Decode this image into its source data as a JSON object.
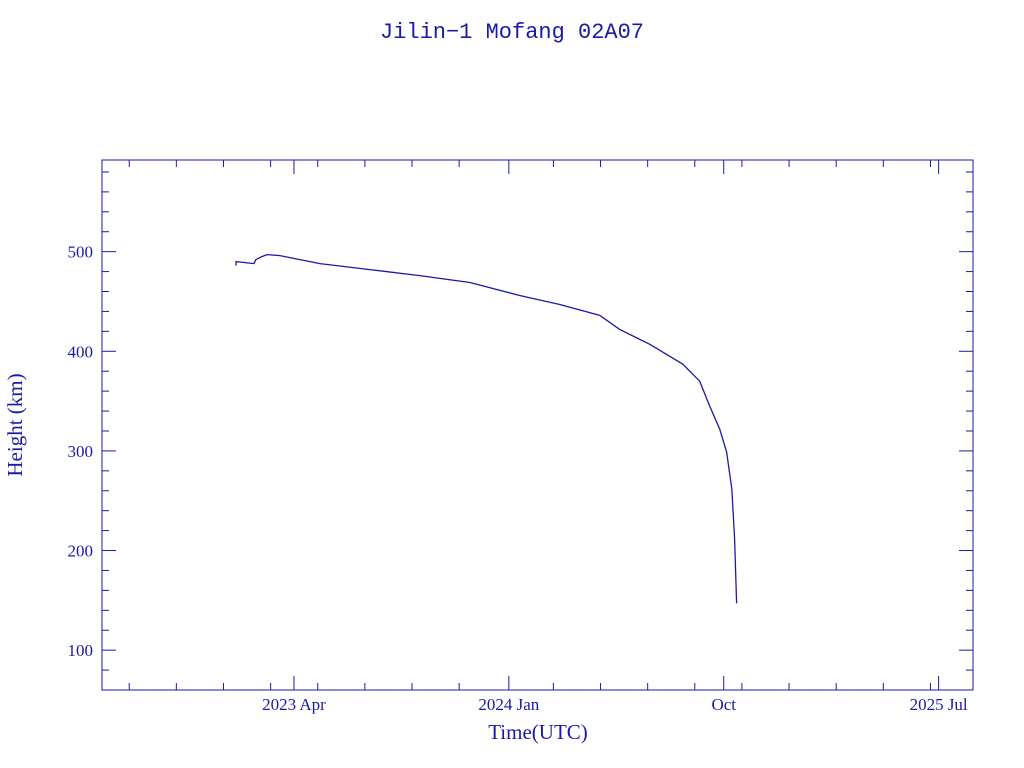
{
  "chart_data": {
    "type": "line",
    "title": "Jilin−1 Mofang 02A07",
    "xlabel": "Time(UTC)",
    "ylabel": "Height (km)",
    "xlim": [
      2022.58,
      2025.62
    ],
    "ylim": [
      60,
      592
    ],
    "x_unit": "decimal year",
    "x_ticks": [
      {
        "value": 2023.25,
        "label": "2023 Apr"
      },
      {
        "value": 2024.0,
        "label": "2024 Jan"
      },
      {
        "value": 2024.75,
        "label": "Oct"
      },
      {
        "value": 2025.5,
        "label": "2025 Jul"
      }
    ],
    "y_ticks": [
      {
        "value": 100,
        "label": "100"
      },
      {
        "value": 200,
        "label": "200"
      },
      {
        "value": 300,
        "label": "300"
      },
      {
        "value": 400,
        "label": "400"
      },
      {
        "value": 500,
        "label": "500"
      }
    ],
    "grid": false,
    "color": "#1a1aa6",
    "series": [
      {
        "name": "Height",
        "x": [
          2023.048,
          2023.048,
          2023.11,
          2023.117,
          2023.138,
          2023.156,
          2023.201,
          2023.341,
          2023.515,
          2023.689,
          2023.864,
          2024.038,
          2024.178,
          2024.317,
          2024.387,
          2024.492,
          2024.607,
          2024.666,
          2024.701,
          2024.736,
          2024.76,
          2024.778,
          2024.788,
          2024.795
        ],
        "values": [
          486,
          490,
          488,
          492,
          495,
          497,
          496,
          488,
          482,
          476,
          469,
          456,
          447,
          436,
          422,
          407,
          387,
          370,
          345,
          322,
          299,
          262,
          212,
          147
        ]
      }
    ]
  }
}
